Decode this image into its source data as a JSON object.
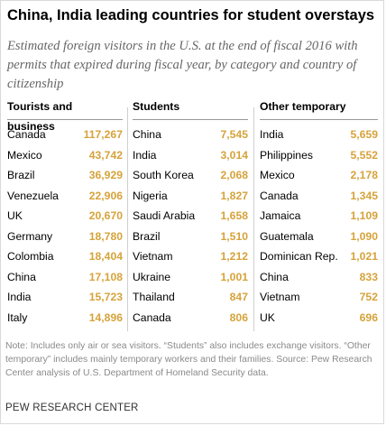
{
  "title": "China, India leading countries for student overstays",
  "subtitle": "Estimated foreign visitors in the U.S. at the end of fiscal 2016 with permits that expired during fiscal year, by category and country of citizenship",
  "chart_data": {
    "type": "table",
    "columns": [
      {
        "header": "Tourists and business",
        "rows": [
          {
            "country": "Canada",
            "value": "117,267"
          },
          {
            "country": "Mexico",
            "value": "43,742"
          },
          {
            "country": "Brazil",
            "value": "36,929"
          },
          {
            "country": "Venezuela",
            "value": "22,906"
          },
          {
            "country": "UK",
            "value": "20,670"
          },
          {
            "country": "Germany",
            "value": "18,780"
          },
          {
            "country": "Colombia",
            "value": "18,404"
          },
          {
            "country": "China",
            "value": "17,108"
          },
          {
            "country": "India",
            "value": "15,723"
          },
          {
            "country": "Italy",
            "value": "14,896"
          }
        ]
      },
      {
        "header": "Students",
        "rows": [
          {
            "country": "China",
            "value": "7,545"
          },
          {
            "country": "India",
            "value": "3,014"
          },
          {
            "country": "South Korea",
            "value": "2,068"
          },
          {
            "country": "Nigeria",
            "value": "1,827"
          },
          {
            "country": "Saudi Arabia",
            "value": "1,658"
          },
          {
            "country": "Brazil",
            "value": "1,510"
          },
          {
            "country": "Vietnam",
            "value": "1,212"
          },
          {
            "country": "Ukraine",
            "value": "1,001"
          },
          {
            "country": "Thailand",
            "value": "847"
          },
          {
            "country": "Canada",
            "value": "806"
          }
        ]
      },
      {
        "header": "Other temporary",
        "rows": [
          {
            "country": "India",
            "value": "5,659"
          },
          {
            "country": "Philippines",
            "value": "5,552"
          },
          {
            "country": "Mexico",
            "value": "2,178"
          },
          {
            "country": "Canada",
            "value": "1,345"
          },
          {
            "country": "Jamaica",
            "value": "1,109"
          },
          {
            "country": "Guatemala",
            "value": "1,090"
          },
          {
            "country": "Dominican Rep.",
            "value": "1,021"
          },
          {
            "country": "China",
            "value": "833"
          },
          {
            "country": "Vietnam",
            "value": "752"
          },
          {
            "country": "UK",
            "value": "696"
          }
        ]
      }
    ]
  },
  "note": "Note: Includes only air or sea visitors. “Students” also includes exchange visitors. “Other temporary” includes mainly temporary workers and their families. Source: Pew Research Center analysis of U.S. Department of Homeland Security data.",
  "source": "PEW RESEARCH CENTER",
  "colors": {
    "value": "#d6a33b"
  }
}
